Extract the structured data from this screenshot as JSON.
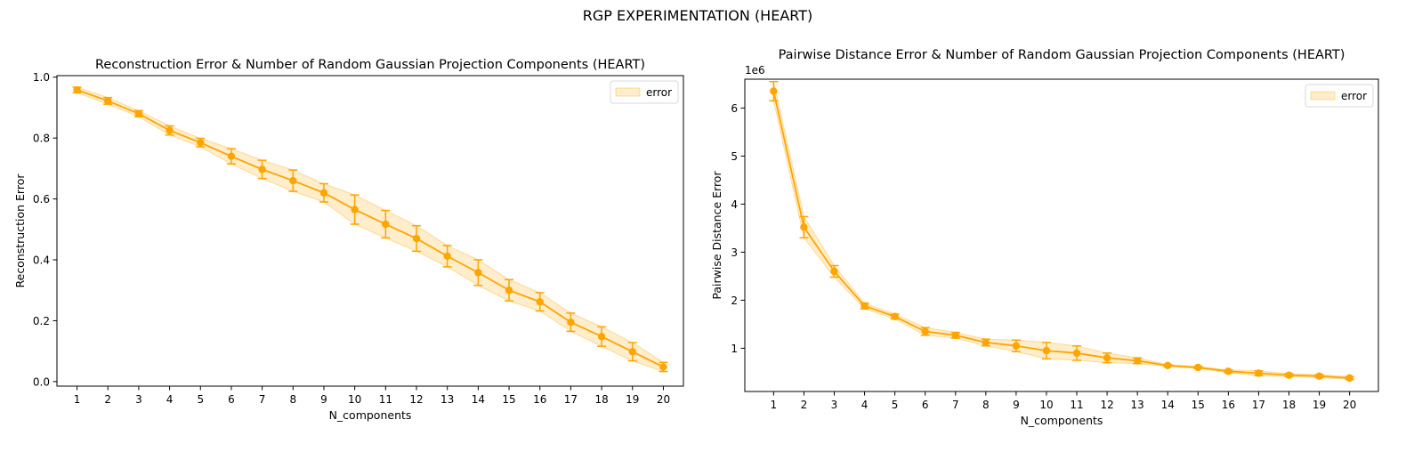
{
  "suptitle": "RGP EXPERIMENTATION (HEART)",
  "chart_data": [
    {
      "type": "line",
      "title": "Reconstruction Error & Number of Random Gaussian Projection Components (HEART)",
      "xlabel": "N_components",
      "ylabel": "Reconstruction Error",
      "offset_label": "",
      "x": [
        1,
        2,
        3,
        4,
        5,
        6,
        7,
        8,
        9,
        10,
        11,
        12,
        13,
        14,
        15,
        16,
        17,
        18,
        19,
        20
      ],
      "y": [
        0.958,
        0.922,
        0.88,
        0.825,
        0.785,
        0.74,
        0.697,
        0.66,
        0.62,
        0.565,
        0.517,
        0.47,
        0.412,
        0.358,
        0.3,
        0.262,
        0.195,
        0.148,
        0.098,
        0.048
      ],
      "yerr": [
        0.009,
        0.011,
        0.01,
        0.015,
        0.014,
        0.025,
        0.03,
        0.035,
        0.03,
        0.048,
        0.045,
        0.042,
        0.035,
        0.042,
        0.035,
        0.03,
        0.03,
        0.032,
        0.03,
        0.015
      ],
      "xlim": [
        0.35,
        20.65
      ],
      "ylim": [
        -0.015,
        1.005
      ],
      "xticks": [
        1,
        2,
        3,
        4,
        5,
        6,
        7,
        8,
        9,
        10,
        11,
        12,
        13,
        14,
        15,
        16,
        17,
        18,
        19,
        20
      ],
      "yticks": [
        0.0,
        0.2,
        0.4,
        0.6,
        0.8,
        1.0
      ],
      "ytick_labels": [
        "0.0",
        "0.2",
        "0.4",
        "0.6",
        "0.8",
        "1.0"
      ],
      "legend": [
        "error"
      ],
      "legend_position": "top-right",
      "grid": false,
      "color": "#ffa500"
    },
    {
      "type": "line",
      "title": "Pairwise Distance Error & Number of Random Gaussian Projection Components (HEART)",
      "xlabel": "N_components",
      "ylabel": "Pairwise Distance Error",
      "offset_label": "1e6",
      "x": [
        1,
        2,
        3,
        4,
        5,
        6,
        7,
        8,
        9,
        10,
        11,
        12,
        13,
        14,
        15,
        16,
        17,
        18,
        19,
        20
      ],
      "y": [
        6.35,
        3.52,
        2.6,
        1.88,
        1.66,
        1.35,
        1.27,
        1.12,
        1.05,
        0.95,
        0.9,
        0.8,
        0.74,
        0.64,
        0.6,
        0.52,
        0.48,
        0.44,
        0.42,
        0.38
      ],
      "yerr": [
        0.2,
        0.22,
        0.12,
        0.06,
        0.05,
        0.08,
        0.06,
        0.07,
        0.12,
        0.17,
        0.15,
        0.1,
        0.06,
        0.02,
        0.02,
        0.03,
        0.05,
        0.03,
        0.03,
        0.03
      ],
      "xlim": [
        0.05,
        20.95
      ],
      "ylim": [
        0.1,
        6.6
      ],
      "xticks": [
        1,
        2,
        3,
        4,
        5,
        6,
        7,
        8,
        9,
        10,
        11,
        12,
        13,
        14,
        15,
        16,
        17,
        18,
        19,
        20
      ],
      "yticks": [
        1,
        2,
        3,
        4,
        5,
        6
      ],
      "ytick_labels": [
        "1",
        "2",
        "3",
        "4",
        "5",
        "6"
      ],
      "legend": [
        "error"
      ],
      "legend_position": "top-right",
      "grid": false,
      "color": "#ffa500"
    }
  ]
}
